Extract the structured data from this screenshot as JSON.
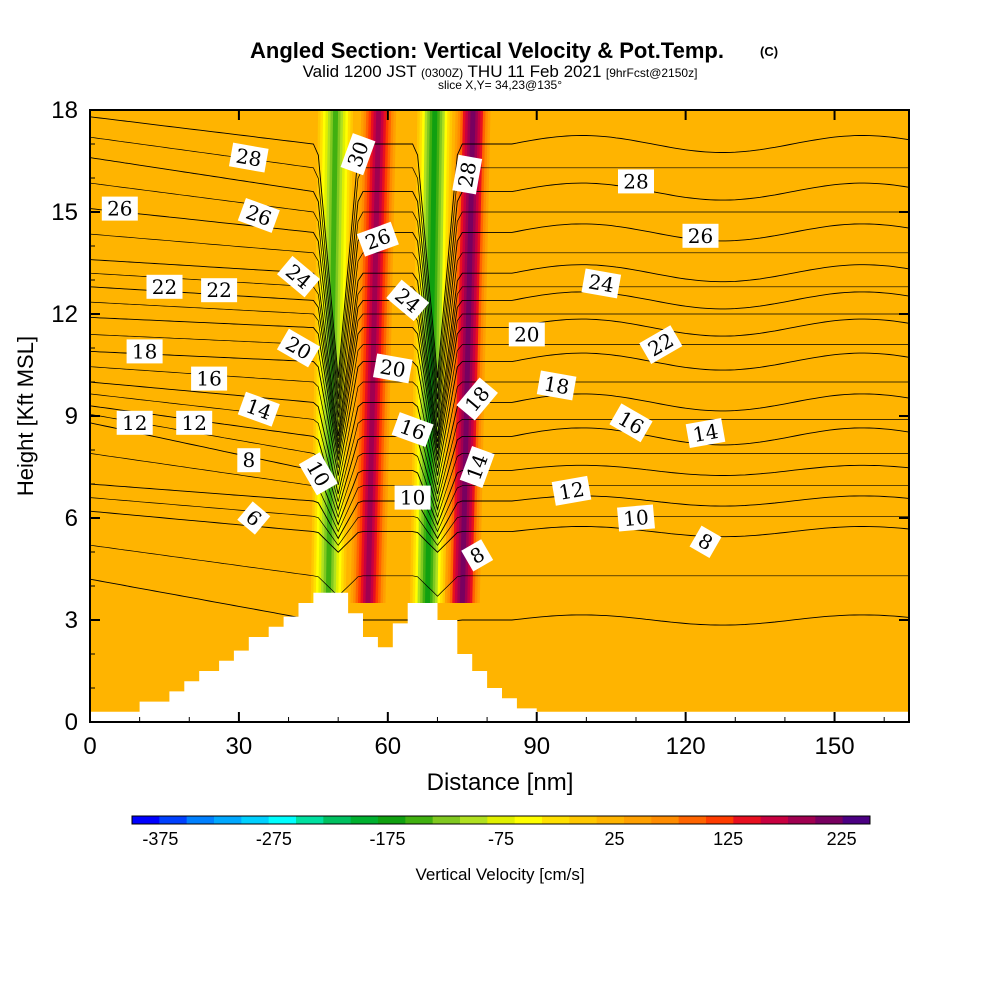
{
  "chart_data": {
    "type": "heatmap",
    "title": "Angled Section: Vertical Velocity & Pot.Temp.",
    "title_mark": "(C)",
    "subtitle_parts": [
      "Valid 1200 JST",
      "(0300Z)",
      "THU 11 Feb 2021",
      "[9hrFcst@2150z]"
    ],
    "slice_note": "slice X,Y= 34,23@135°",
    "xlabel": "Distance [nm]",
    "ylabel": "Height [Kft MSL]",
    "xlim": [
      0,
      165
    ],
    "ylim": [
      0,
      18
    ],
    "xticks": [
      "0",
      "30",
      "60",
      "90",
      "120",
      "150"
    ],
    "yticks": [
      "0",
      "3",
      "6",
      "9",
      "12",
      "15",
      "18"
    ],
    "colorbar": {
      "label": "Vertical Velocity [cm/s]",
      "min": -400,
      "max": 250,
      "tick_labels": [
        "-375",
        "-275",
        "-175",
        "-75",
        "25",
        "125",
        "225"
      ],
      "colors": [
        "#0000ff",
        "#0040ff",
        "#0080ff",
        "#00a8ff",
        "#00d0ff",
        "#00ffff",
        "#00e0a0",
        "#00c060",
        "#00b030",
        "#10a010",
        "#40b010",
        "#80c820",
        "#b0e020",
        "#e0f000",
        "#ffff00",
        "#ffe000",
        "#ffc800",
        "#ffb400",
        "#ffa000",
        "#ff8c00",
        "#ff6400",
        "#ff3c00",
        "#e81020",
        "#c80040",
        "#a00050",
        "#780060",
        "#4b0082"
      ]
    },
    "background_velocity": 25,
    "velocity_bands": [
      {
        "x": 48,
        "value": -150
      },
      {
        "x": 56,
        "value": 200
      },
      {
        "x": 68,
        "value": -180
      },
      {
        "x": 75,
        "value": 210
      }
    ],
    "terrain_profile": [
      [
        0,
        0.3
      ],
      [
        10,
        0.3
      ],
      [
        10,
        0.6
      ],
      [
        16,
        0.6
      ],
      [
        16,
        0.9
      ],
      [
        19,
        0.9
      ],
      [
        19,
        1.2
      ],
      [
        22,
        1.2
      ],
      [
        22,
        1.5
      ],
      [
        26,
        1.5
      ],
      [
        26,
        1.8
      ],
      [
        29,
        1.8
      ],
      [
        29,
        2.1
      ],
      [
        32,
        2.1
      ],
      [
        32,
        2.5
      ],
      [
        36,
        2.5
      ],
      [
        36,
        2.8
      ],
      [
        39,
        2.8
      ],
      [
        39,
        3.1
      ],
      [
        42,
        3.1
      ],
      [
        42,
        3.5
      ],
      [
        45,
        3.5
      ],
      [
        45,
        3.8
      ],
      [
        52,
        3.8
      ],
      [
        52,
        3.2
      ],
      [
        55,
        3.2
      ],
      [
        55,
        2.5
      ],
      [
        58,
        2.5
      ],
      [
        58,
        2.2
      ],
      [
        61,
        2.2
      ],
      [
        61,
        2.9
      ],
      [
        64,
        2.9
      ],
      [
        64,
        3.5
      ],
      [
        70,
        3.5
      ],
      [
        70,
        3.0
      ],
      [
        74,
        3.0
      ],
      [
        74,
        2.0
      ],
      [
        77,
        2.0
      ],
      [
        77,
        1.5
      ],
      [
        80,
        1.5
      ],
      [
        80,
        1.0
      ],
      [
        83,
        1.0
      ],
      [
        83,
        0.7
      ],
      [
        86,
        0.7
      ],
      [
        86,
        0.4
      ],
      [
        90,
        0.4
      ],
      [
        90,
        0.3
      ],
      [
        165,
        0.3
      ]
    ],
    "theta_contours": [
      {
        "label": "6",
        "base": 3.0,
        "y0": 4.2,
        "labels": [
          {
            "x": 33,
            "y": 6.0,
            "rot": 40
          }
        ]
      },
      {
        "label": "8",
        "base": 5.6,
        "y0": 6.2,
        "labels": [
          {
            "x": 32,
            "y": 7.7,
            "rot": 0
          },
          {
            "x": 78,
            "y": 4.9,
            "rot": -30
          },
          {
            "x": 124,
            "y": 5.3,
            "rot": 30
          }
        ]
      },
      {
        "label": "10",
        "base": 6.5,
        "y0": 7.0,
        "labels": [
          {
            "x": 46,
            "y": 7.3,
            "rot": 60
          },
          {
            "x": 65,
            "y": 6.6,
            "rot": 0
          },
          {
            "x": 110,
            "y": 6.0,
            "rot": -5
          }
        ]
      },
      {
        "label": "12",
        "base": 7.4,
        "y0": 8.8,
        "labels": [
          {
            "x": 9,
            "y": 8.8,
            "rot": 0
          },
          {
            "x": 21,
            "y": 8.8,
            "rot": 0
          },
          {
            "x": 97,
            "y": 6.8,
            "rot": -10
          }
        ]
      },
      {
        "label": "14",
        "base": 8.4,
        "y0": 9.3,
        "labels": [
          {
            "x": 34,
            "y": 9.2,
            "rot": 20
          },
          {
            "x": 78,
            "y": 7.5,
            "rot": -70
          },
          {
            "x": 124,
            "y": 8.5,
            "rot": -10
          }
        ]
      },
      {
        "label": "16",
        "base": 9.4,
        "y0": 10.0,
        "labels": [
          {
            "x": 24,
            "y": 10.1,
            "rot": 0
          },
          {
            "x": 65,
            "y": 8.6,
            "rot": 20
          },
          {
            "x": 109,
            "y": 8.8,
            "rot": 30
          }
        ]
      },
      {
        "label": "18",
        "base": 10.6,
        "y0": 10.9,
        "labels": [
          {
            "x": 11,
            "y": 10.9,
            "rot": 0
          },
          {
            "x": 78,
            "y": 9.5,
            "rot": -50
          },
          {
            "x": 94,
            "y": 9.9,
            "rot": 10
          }
        ]
      },
      {
        "label": "20",
        "base": 11.6,
        "y0": 11.9,
        "labels": [
          {
            "x": 42,
            "y": 11.0,
            "rot": 30
          },
          {
            "x": 61,
            "y": 10.4,
            "rot": 10
          },
          {
            "x": 88,
            "y": 11.4,
            "rot": 0
          }
        ]
      },
      {
        "label": "22",
        "base": 12.4,
        "y0": 12.8,
        "labels": [
          {
            "x": 15,
            "y": 12.8,
            "rot": 0
          },
          {
            "x": 26,
            "y": 12.7,
            "rot": 0
          },
          {
            "x": 115,
            "y": 11.1,
            "rot": -30
          }
        ]
      },
      {
        "label": "24",
        "base": 13.2,
        "y0": 13.6,
        "labels": [
          {
            "x": 42,
            "y": 13.1,
            "rot": 40
          },
          {
            "x": 64,
            "y": 12.4,
            "rot": 40
          },
          {
            "x": 103,
            "y": 12.9,
            "rot": 10
          }
        ]
      },
      {
        "label": "26",
        "base": 14.4,
        "y0": 15.1,
        "labels": [
          {
            "x": 6,
            "y": 15.1,
            "rot": 0
          },
          {
            "x": 34,
            "y": 14.9,
            "rot": 20
          },
          {
            "x": 58,
            "y": 14.2,
            "rot": -20
          },
          {
            "x": 123,
            "y": 14.3,
            "rot": 0
          }
        ]
      },
      {
        "label": "28",
        "base": 15.6,
        "y0": 16.6,
        "labels": [
          {
            "x": 32,
            "y": 16.6,
            "rot": 10
          },
          {
            "x": 76,
            "y": 16.1,
            "rot": -80
          },
          {
            "x": 110,
            "y": 15.9,
            "rot": 0
          }
        ]
      },
      {
        "label": "30",
        "base": 17.0,
        "y0": 17.8,
        "labels": [
          {
            "x": 54,
            "y": 16.7,
            "rot": -70
          }
        ]
      }
    ]
  }
}
